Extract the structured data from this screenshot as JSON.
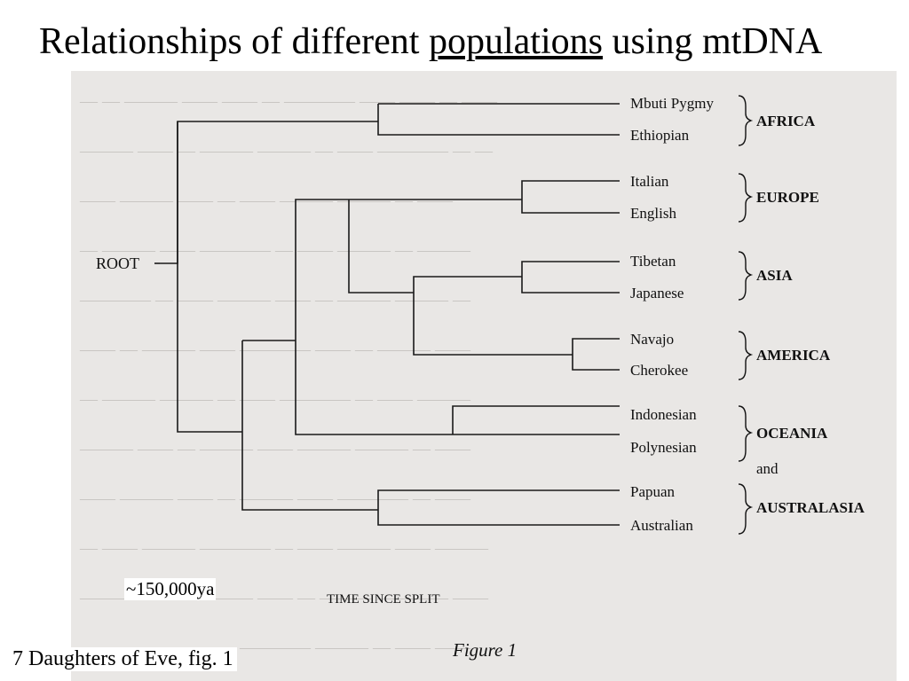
{
  "slide": {
    "title_prefix": "Relationships of different ",
    "title_link": "populations",
    "title_suffix": " using mtDNA",
    "annotation": "~150,000ya",
    "caption": "7 Daughters of Eve, fig. 1"
  },
  "figure": {
    "root_label": "ROOT",
    "axis_label": "TIME SINCE SPLIT",
    "figure_label": "Figure 1",
    "taxa": [
      "Mbuti Pygmy",
      "Ethiopian",
      "Italian",
      "English",
      "Tibetan",
      "Japanese",
      "Navajo",
      "Cherokee",
      "Indonesian",
      "Polynesian",
      "Papuan",
      "Australian"
    ],
    "regions": [
      "AFRICA",
      "EUROPE",
      "ASIA",
      "AMERICA",
      "OCEANIA",
      "and",
      "AUSTRALASIA"
    ]
  },
  "colors": {
    "background": "#ffffff",
    "scan": "#e9e7e5",
    "ink": "#111111"
  }
}
